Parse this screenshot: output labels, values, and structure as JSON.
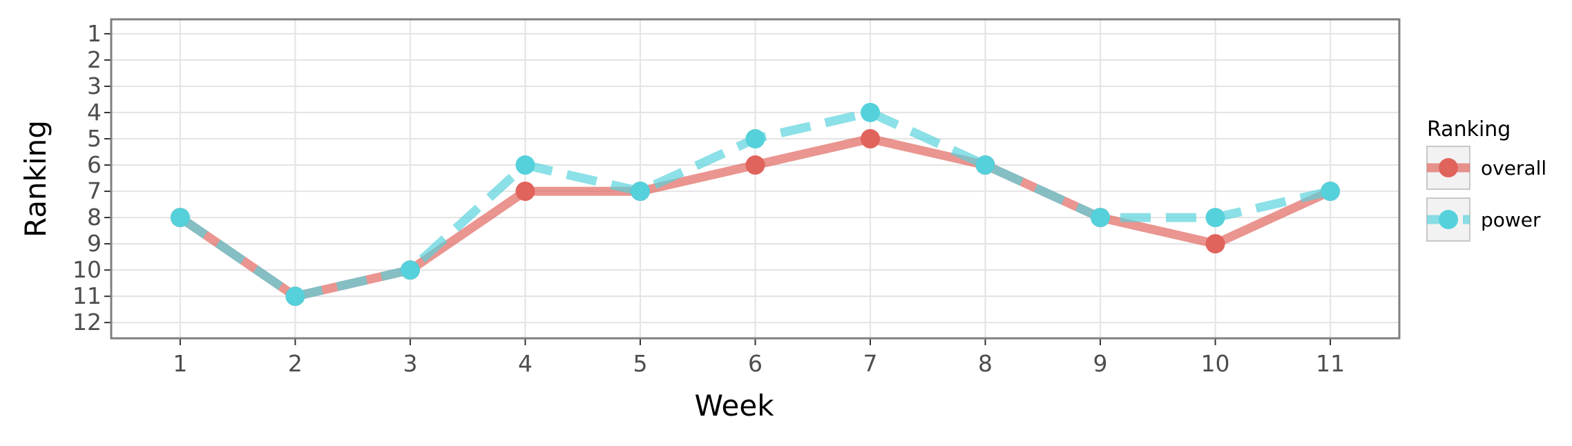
{
  "chart_data": {
    "type": "line",
    "title": "",
    "xlabel": "Week",
    "ylabel": "Ranking",
    "x": [
      1,
      2,
      3,
      4,
      5,
      6,
      7,
      8,
      9,
      10,
      11
    ],
    "xlim": [
      0.4,
      11.6
    ],
    "ylim": [
      12.6,
      0.45
    ],
    "y_reversed": true,
    "x_ticks": [
      "1",
      "2",
      "3",
      "4",
      "5",
      "6",
      "7",
      "8",
      "9",
      "10",
      "11"
    ],
    "y_ticks": [
      "1",
      "2",
      "3",
      "4",
      "5",
      "6",
      "7",
      "8",
      "9",
      "10",
      "11",
      "12"
    ],
    "grid": true,
    "legend": {
      "title": "Ranking",
      "position": "right"
    },
    "series": [
      {
        "name": "overall",
        "color": "#E0635C",
        "line_style": "solid",
        "values": [
          8,
          11,
          10,
          7,
          7,
          6,
          5,
          6,
          8,
          9,
          7
        ]
      },
      {
        "name": "power",
        "color": "#55D1DB",
        "line_style": "dashed",
        "values": [
          8,
          11,
          10,
          6,
          7,
          5,
          4,
          6,
          8,
          8,
          7
        ]
      }
    ]
  }
}
